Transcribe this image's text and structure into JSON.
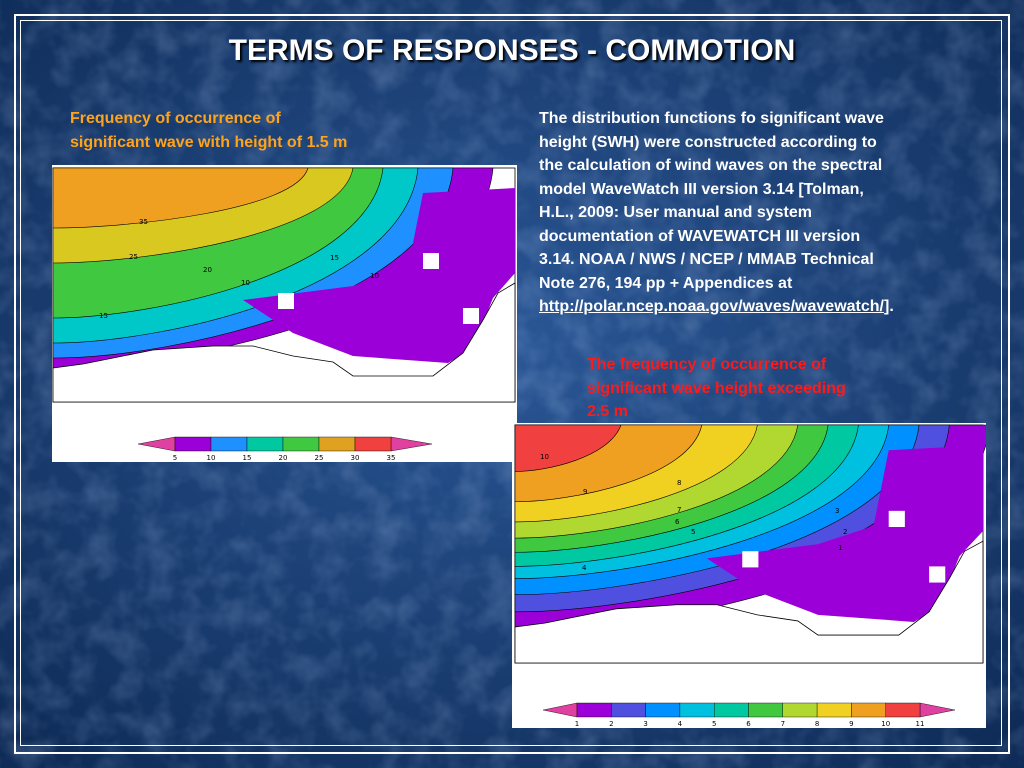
{
  "slide": {
    "title": "TERMS OF RESPONSES - COMMOTION",
    "left_caption": [
      "Frequency of occurrence of",
      "significant wave with height of 1.5 m"
    ],
    "description": {
      "lines": [
        "The distribution functions fo significant wave",
        "height (SWH) were constructed according to",
        "the calculation of wind waves on the spectral",
        "model WaveWatch III version 3.14 [Tolman,",
        "H.L., 2009: User manual and system",
        "documentation of WAVEWATCH III version",
        "3.14. NOAA / NWS / NCEP / MMAB Technical",
        "Note 276, 194 pp + Appendices at"
      ],
      "link": "http://polar.ncep.noaa.gov/waves/wavewatch/",
      "link_suffix": "]."
    },
    "right_caption": [
      "The frequency of occurrence of",
      "significant wave height exceeding",
      "2.5 m"
    ],
    "map_1": {
      "contour_labels": [
        "35",
        "25",
        "20",
        "15",
        "10",
        "10",
        "15"
      ],
      "colorbar_labels": [
        5,
        10,
        15,
        20,
        25,
        30,
        35
      ]
    },
    "map_2": {
      "contour_labels": [
        "10",
        "9",
        "8",
        "7",
        "6",
        "5",
        "3",
        "2",
        "1",
        "4"
      ],
      "colorbar_labels": [
        1,
        2,
        3,
        4,
        5,
        6,
        7,
        8,
        9,
        10,
        11
      ]
    }
  }
}
